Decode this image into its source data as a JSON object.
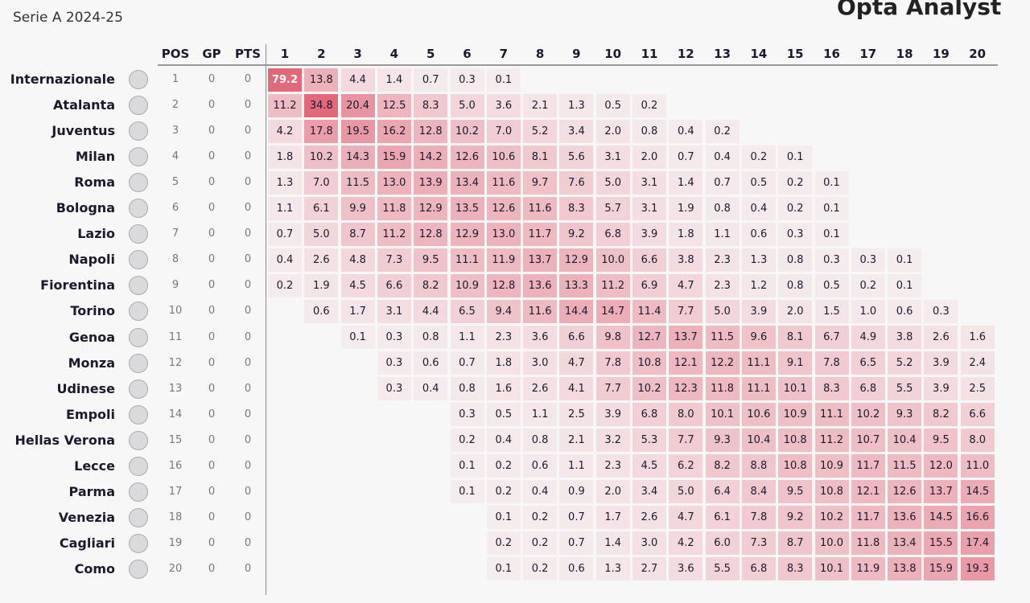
{
  "header": {
    "subtitle": "Serie A 2024-25",
    "brand": "Opta Analyst"
  },
  "table": {
    "columns": [
      "POS",
      "GP",
      "PTS"
    ],
    "positions": [
      "1",
      "2",
      "3",
      "4",
      "5",
      "6",
      "7",
      "8",
      "9",
      "10",
      "11",
      "12",
      "13",
      "14",
      "15",
      "16",
      "17",
      "18",
      "19",
      "20"
    ],
    "rows": [
      {
        "team": "Internazionale",
        "pos": "1",
        "gp": "0",
        "pts": "0",
        "cells": [
          "79.2",
          "13.8",
          "4.4",
          "1.4",
          "0.7",
          "0.3",
          "0.1",
          null,
          null,
          null,
          null,
          null,
          null,
          null,
          null,
          null,
          null,
          null,
          null,
          null
        ]
      },
      {
        "team": "Atalanta",
        "pos": "2",
        "gp": "0",
        "pts": "0",
        "cells": [
          "11.2",
          "34.8",
          "20.4",
          "12.5",
          "8.3",
          "5.0",
          "3.6",
          "2.1",
          "1.3",
          "0.5",
          "0.2",
          null,
          null,
          null,
          null,
          null,
          null,
          null,
          null,
          null
        ]
      },
      {
        "team": "Juventus",
        "pos": "3",
        "gp": "0",
        "pts": "0",
        "cells": [
          "4.2",
          "17.8",
          "19.5",
          "16.2",
          "12.8",
          "10.2",
          "7.0",
          "5.2",
          "3.4",
          "2.0",
          "0.8",
          "0.4",
          "0.2",
          null,
          null,
          null,
          null,
          null,
          null,
          null
        ]
      },
      {
        "team": "Milan",
        "pos": "4",
        "gp": "0",
        "pts": "0",
        "cells": [
          "1.8",
          "10.2",
          "14.3",
          "15.9",
          "14.2",
          "12.6",
          "10.6",
          "8.1",
          "5.6",
          "3.1",
          "2.0",
          "0.7",
          "0.4",
          "0.2",
          "0.1",
          null,
          null,
          null,
          null,
          null
        ]
      },
      {
        "team": "Roma",
        "pos": "5",
        "gp": "0",
        "pts": "0",
        "cells": [
          "1.3",
          "7.0",
          "11.5",
          "13.0",
          "13.9",
          "13.4",
          "11.6",
          "9.7",
          "7.6",
          "5.0",
          "3.1",
          "1.4",
          "0.7",
          "0.5",
          "0.2",
          "0.1",
          null,
          null,
          null,
          null
        ]
      },
      {
        "team": "Bologna",
        "pos": "6",
        "gp": "0",
        "pts": "0",
        "cells": [
          "1.1",
          "6.1",
          "9.9",
          "11.8",
          "12.9",
          "13.5",
          "12.6",
          "11.6",
          "8.3",
          "5.7",
          "3.1",
          "1.9",
          "0.8",
          "0.4",
          "0.2",
          "0.1",
          null,
          null,
          null,
          null
        ]
      },
      {
        "team": "Lazio",
        "pos": "7",
        "gp": "0",
        "pts": "0",
        "cells": [
          "0.7",
          "5.0",
          "8.7",
          "11.2",
          "12.8",
          "12.9",
          "13.0",
          "11.7",
          "9.2",
          "6.8",
          "3.9",
          "1.8",
          "1.1",
          "0.6",
          "0.3",
          "0.1",
          null,
          null,
          null,
          null
        ]
      },
      {
        "team": "Napoli",
        "pos": "8",
        "gp": "0",
        "pts": "0",
        "cells": [
          "0.4",
          "2.6",
          "4.8",
          "7.3",
          "9.5",
          "11.1",
          "11.9",
          "13.7",
          "12.9",
          "10.0",
          "6.6",
          "3.8",
          "2.3",
          "1.3",
          "0.8",
          "0.3",
          "0.3",
          "0.1",
          null,
          null
        ]
      },
      {
        "team": "Fiorentina",
        "pos": "9",
        "gp": "0",
        "pts": "0",
        "cells": [
          "0.2",
          "1.9",
          "4.5",
          "6.6",
          "8.2",
          "10.9",
          "12.8",
          "13.6",
          "13.3",
          "11.2",
          "6.9",
          "4.7",
          "2.3",
          "1.2",
          "0.8",
          "0.5",
          "0.2",
          "0.1",
          null,
          null
        ]
      },
      {
        "team": "Torino",
        "pos": "10",
        "gp": "0",
        "pts": "0",
        "cells": [
          null,
          "0.6",
          "1.7",
          "3.1",
          "4.4",
          "6.5",
          "9.4",
          "11.6",
          "14.4",
          "14.7",
          "11.4",
          "7.7",
          "5.0",
          "3.9",
          "2.0",
          "1.5",
          "1.0",
          "0.6",
          "0.3",
          null
        ]
      },
      {
        "team": "Genoa",
        "pos": "11",
        "gp": "0",
        "pts": "0",
        "cells": [
          null,
          null,
          "0.1",
          "0.3",
          "0.8",
          "1.1",
          "2.3",
          "3.6",
          "6.6",
          "9.8",
          "12.7",
          "13.7",
          "11.5",
          "9.6",
          "8.1",
          "6.7",
          "4.9",
          "3.8",
          "2.6",
          "1.6"
        ]
      },
      {
        "team": "Monza",
        "pos": "12",
        "gp": "0",
        "pts": "0",
        "cells": [
          null,
          null,
          null,
          "0.3",
          "0.6",
          "0.7",
          "1.8",
          "3.0",
          "4.7",
          "7.8",
          "10.8",
          "12.1",
          "12.2",
          "11.1",
          "9.1",
          "7.8",
          "6.5",
          "5.2",
          "3.9",
          "2.4"
        ]
      },
      {
        "team": "Udinese",
        "pos": "13",
        "gp": "0",
        "pts": "0",
        "cells": [
          null,
          null,
          null,
          "0.3",
          "0.4",
          "0.8",
          "1.6",
          "2.6",
          "4.1",
          "7.7",
          "10.2",
          "12.3",
          "11.8",
          "11.1",
          "10.1",
          "8.3",
          "6.8",
          "5.5",
          "3.9",
          "2.5"
        ]
      },
      {
        "team": "Empoli",
        "pos": "14",
        "gp": "0",
        "pts": "0",
        "cells": [
          null,
          null,
          null,
          null,
          null,
          "0.3",
          "0.5",
          "1.1",
          "2.5",
          "3.9",
          "6.8",
          "8.0",
          "10.1",
          "10.6",
          "10.9",
          "11.1",
          "10.2",
          "9.3",
          "8.2",
          "6.6"
        ]
      },
      {
        "team": "Hellas Verona",
        "pos": "15",
        "gp": "0",
        "pts": "0",
        "cells": [
          null,
          null,
          null,
          null,
          null,
          "0.2",
          "0.4",
          "0.8",
          "2.1",
          "3.2",
          "5.3",
          "7.7",
          "9.3",
          "10.4",
          "10.8",
          "11.2",
          "10.7",
          "10.4",
          "9.5",
          "8.0"
        ]
      },
      {
        "team": "Lecce",
        "pos": "16",
        "gp": "0",
        "pts": "0",
        "cells": [
          null,
          null,
          null,
          null,
          null,
          "0.1",
          "0.2",
          "0.6",
          "1.1",
          "2.3",
          "4.5",
          "6.2",
          "8.2",
          "8.8",
          "10.8",
          "10.9",
          "11.7",
          "11.5",
          "12.0",
          "11.0"
        ]
      },
      {
        "team": "Parma",
        "pos": "17",
        "gp": "0",
        "pts": "0",
        "cells": [
          null,
          null,
          null,
          null,
          null,
          "0.1",
          "0.2",
          "0.4",
          "0.9",
          "2.0",
          "3.4",
          "5.0",
          "6.4",
          "8.4",
          "9.5",
          "10.8",
          "12.1",
          "12.6",
          "13.7",
          "14.5"
        ]
      },
      {
        "team": "Venezia",
        "pos": "18",
        "gp": "0",
        "pts": "0",
        "cells": [
          null,
          null,
          null,
          null,
          null,
          null,
          "0.1",
          "0.2",
          "0.7",
          "1.7",
          "2.6",
          "4.7",
          "6.1",
          "7.8",
          "9.2",
          "10.2",
          "11.7",
          "13.6",
          "14.5",
          "16.6"
        ]
      },
      {
        "team": "Cagliari",
        "pos": "19",
        "gp": "0",
        "pts": "0",
        "cells": [
          null,
          null,
          null,
          null,
          null,
          null,
          "0.2",
          "0.2",
          "0.7",
          "1.4",
          "3.0",
          "4.2",
          "6.0",
          "7.3",
          "8.7",
          "10.0",
          "11.8",
          "13.4",
          "15.5",
          "17.4"
        ]
      },
      {
        "team": "Como",
        "pos": "20",
        "gp": "0",
        "pts": "0",
        "cells": [
          null,
          null,
          null,
          null,
          null,
          null,
          "0.1",
          "0.2",
          "0.6",
          "1.3",
          "2.7",
          "3.6",
          "5.5",
          "6.8",
          "8.3",
          "10.1",
          "11.9",
          "13.8",
          "15.9",
          "19.3"
        ]
      }
    ]
  }
}
